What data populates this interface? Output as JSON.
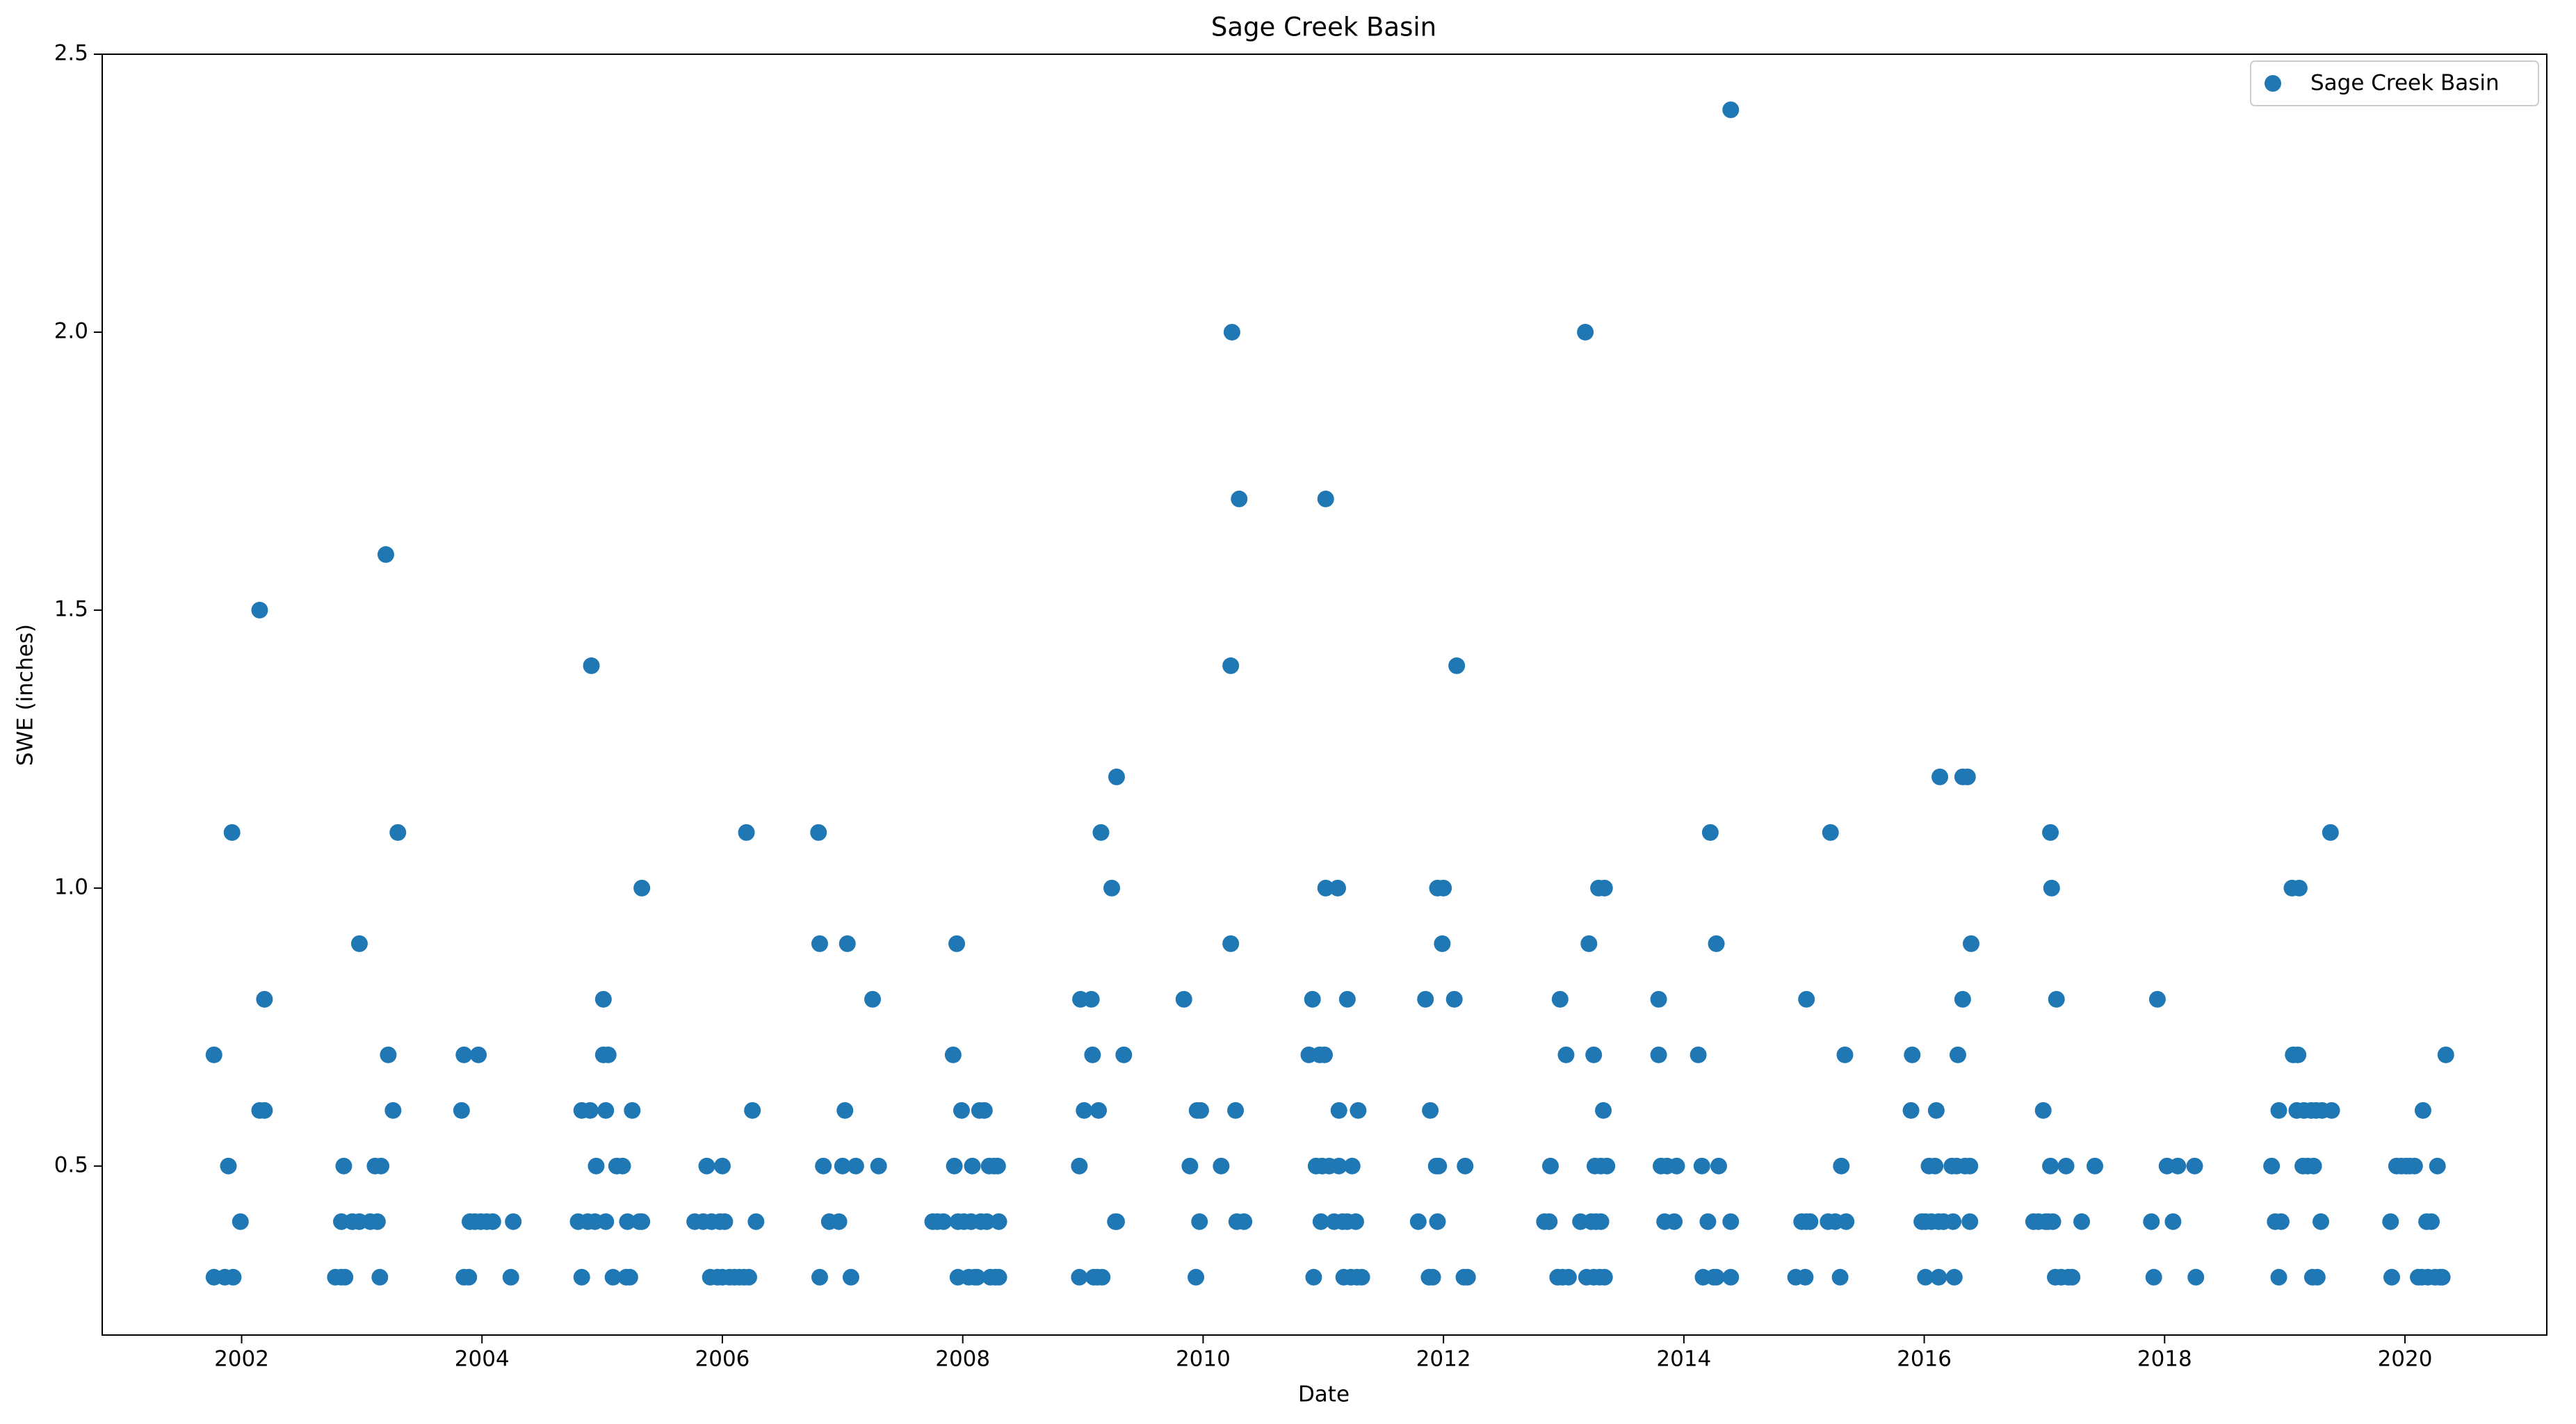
{
  "chart_data": {
    "type": "scatter",
    "title": "Sage Creek Basin",
    "x_label": "Date",
    "y_label": "SWE (inches)",
    "xlim": [
      2000.84,
      2021.18
    ],
    "ylim": [
      0.196,
      2.5
    ],
    "xticks": [
      2002,
      2004,
      2006,
      2008,
      2010,
      2012,
      2014,
      2016,
      2018,
      2020
    ],
    "yticks": [
      0.5,
      {
        "value": 1.0,
        "label": "1.0"
      },
      1.5,
      {
        "value": 2.0,
        "label": "2.0"
      },
      2.5
    ],
    "legend": "upper right",
    "x": [
      2001.77,
      2001.77,
      2001.86,
      2001.89,
      2001.92,
      2001.93,
      2001.99,
      2002.15,
      2002.15,
      2002.19,
      2002.19,
      2002.78,
      2002.83,
      2002.83,
      2002.85,
      2002.86,
      2002.92,
      2002.98,
      2002.98,
      2003.07,
      2003.11,
      2003.13,
      2003.15,
      2003.16,
      2003.2,
      2003.22,
      2003.26,
      2003.3,
      2003.83,
      2003.85,
      2003.85,
      2003.89,
      2003.9,
      2003.94,
      2003.97,
      2003.99,
      2004.04,
      2004.09,
      2004.24,
      2004.26,
      2004.8,
      2004.83,
      2004.83,
      2004.88,
      2004.9,
      2004.91,
      2004.94,
      2004.95,
      2005.01,
      2005.01,
      2005.03,
      2005.03,
      2005.05,
      2005.09,
      2005.12,
      2005.17,
      2005.2,
      2005.21,
      2005.23,
      2005.25,
      2005.31,
      2005.33,
      2005.33,
      2005.77,
      2005.84,
      2005.87,
      2005.9,
      2005.91,
      2005.96,
      2005.98,
      2006.0,
      2006.0,
      2006.02,
      2006.06,
      2006.1,
      2006.14,
      2006.18,
      2006.2,
      2006.22,
      2006.25,
      2006.28,
      2006.8,
      2006.81,
      2006.81,
      2006.84,
      2006.89,
      2006.97,
      2007.0,
      2007.02,
      2007.04,
      2007.07,
      2007.11,
      2007.25,
      2007.3,
      2007.75,
      2007.79,
      2007.84,
      2007.92,
      2007.95,
      2007.93,
      2007.96,
      2007.96,
      2007.99,
      2008.01,
      2008.05,
      2008.07,
      2008.08,
      2008.1,
      2008.12,
      2008.14,
      2008.15,
      2008.18,
      2008.2,
      2008.22,
      2008.23,
      2008.26,
      2008.27,
      2008.29,
      2008.3,
      2008.3,
      2008.97,
      2008.97,
      2008.98,
      2009.01,
      2009.07,
      2009.09,
      2009.08,
      2009.12,
      2009.13,
      2009.15,
      2009.16,
      2009.24,
      2009.27,
      2009.28,
      2009.28,
      2009.34,
      2009.84,
      2009.89,
      2009.94,
      2009.95,
      2009.97,
      2009.98,
      2010.15,
      2010.23,
      2010.24,
      2010.23,
      2010.27,
      2010.28,
      2010.3,
      2010.34,
      2010.88,
      2010.91,
      2010.92,
      2010.94,
      2010.97,
      2010.98,
      2010.99,
      2011.01,
      2011.02,
      2011.02,
      2011.05,
      2011.09,
      2011.12,
      2011.13,
      2011.13,
      2011.16,
      2011.17,
      2011.2,
      2011.2,
      2011.23,
      2011.24,
      2011.27,
      2011.28,
      2011.29,
      2011.32,
      2011.79,
      2011.85,
      2011.88,
      2011.89,
      2011.91,
      2011.94,
      2011.95,
      2011.95,
      2011.96,
      2011.99,
      2012.0,
      2012.09,
      2012.11,
      2012.17,
      2012.18,
      2012.2,
      2012.84,
      2012.88,
      2012.89,
      2012.95,
      2012.97,
      2012.99,
      2013.02,
      2013.04,
      2013.14,
      2013.18,
      2013.21,
      2013.19,
      2013.23,
      2013.25,
      2013.26,
      2013.25,
      2013.27,
      2013.29,
      2013.3,
      2013.31,
      2013.31,
      2013.33,
      2013.34,
      2013.34,
      2013.36,
      2013.79,
      2013.79,
      2013.81,
      2013.84,
      2013.86,
      2013.92,
      2013.94,
      2014.12,
      2014.15,
      2014.16,
      2014.2,
      2014.22,
      2014.25,
      2014.27,
      2014.29,
      2014.27,
      2014.39,
      2014.39,
      2014.39,
      2014.93,
      2014.98,
      2015.01,
      2015.02,
      2015.02,
      2015.05,
      2015.2,
      2015.22,
      2015.26,
      2015.3,
      2015.31,
      2015.34,
      2015.35,
      2015.89,
      2015.9,
      2015.98,
      2016.01,
      2016.01,
      2016.04,
      2016.06,
      2016.09,
      2016.1,
      2016.12,
      2016.13,
      2016.12,
      2016.16,
      2016.23,
      2016.24,
      2016.25,
      2016.27,
      2016.28,
      2016.32,
      2016.32,
      2016.34,
      2016.36,
      2016.38,
      2016.38,
      2016.39,
      2016.91,
      2016.95,
      2016.99,
      2017.01,
      2017.03,
      2017.05,
      2017.05,
      2017.06,
      2017.07,
      2017.09,
      2017.1,
      2017.14,
      2017.18,
      2017.2,
      2017.23,
      2017.31,
      2017.42,
      2017.89,
      2017.91,
      2017.94,
      2018.02,
      2018.07,
      2018.11,
      2018.25,
      2018.26,
      2018.89,
      2018.92,
      2018.95,
      2018.95,
      2018.97,
      2019.06,
      2019.07,
      2019.1,
      2019.11,
      2019.12,
      2019.15,
      2019.16,
      2019.19,
      2019.22,
      2019.23,
      2019.24,
      2019.26,
      2019.27,
      2019.3,
      2019.31,
      2019.38,
      2019.39,
      2019.88,
      2019.89,
      2019.93,
      2019.97,
      2020.01,
      2020.04,
      2020.08,
      2020.11,
      2020.14,
      2020.15,
      2020.18,
      2020.19,
      2020.22,
      2020.25,
      2020.27,
      2020.29,
      2020.31,
      2020.34
    ],
    "series": [
      {
        "name": "Sage Creek Basin",
        "color": "#1f77b4",
        "values": [
          0.7,
          0.3,
          0.3,
          0.5,
          1.1,
          0.3,
          0.4,
          1.5,
          0.6,
          0.8,
          0.6,
          0.3,
          0.3,
          0.4,
          0.5,
          0.3,
          0.4,
          0.4,
          0.9,
          0.4,
          0.5,
          0.4,
          0.3,
          0.5,
          1.6,
          0.7,
          0.6,
          1.1,
          0.6,
          0.7,
          0.3,
          0.3,
          0.4,
          0.4,
          0.7,
          0.4,
          0.4,
          0.4,
          0.3,
          0.4,
          0.4,
          0.6,
          0.3,
          0.4,
          0.6,
          1.4,
          0.4,
          0.5,
          0.8,
          0.7,
          0.6,
          0.4,
          0.7,
          0.3,
          0.5,
          0.5,
          0.3,
          0.4,
          0.3,
          0.6,
          0.4,
          1.0,
          0.4,
          0.4,
          0.4,
          0.5,
          0.3,
          0.4,
          0.3,
          0.4,
          0.5,
          0.3,
          0.4,
          0.3,
          0.3,
          0.3,
          0.3,
          1.1,
          0.3,
          0.6,
          0.4,
          1.1,
          0.9,
          0.3,
          0.5,
          0.4,
          0.4,
          0.5,
          0.6,
          0.9,
          0.3,
          0.5,
          0.8,
          0.5,
          0.4,
          0.4,
          0.4,
          0.7,
          0.9,
          0.5,
          0.4,
          0.3,
          0.6,
          0.4,
          0.3,
          0.4,
          0.5,
          0.3,
          0.3,
          0.6,
          0.4,
          0.6,
          0.4,
          0.5,
          0.3,
          0.5,
          0.3,
          0.5,
          0.4,
          0.3,
          0.3,
          0.5,
          0.8,
          0.6,
          0.8,
          0.3,
          0.7,
          0.3,
          0.6,
          1.1,
          0.3,
          1.0,
          0.4,
          1.2,
          0.4,
          0.7,
          0.8,
          0.5,
          0.3,
          0.6,
          0.4,
          0.6,
          0.5,
          0.9,
          2.0,
          1.4,
          0.6,
          0.4,
          1.7,
          0.4,
          0.7,
          0.8,
          0.3,
          0.5,
          0.7,
          0.4,
          0.5,
          0.7,
          1.7,
          1.0,
          0.5,
          0.4,
          1.0,
          0.6,
          0.5,
          0.4,
          0.3,
          0.8,
          0.4,
          0.3,
          0.5,
          0.4,
          0.3,
          0.6,
          0.3,
          0.4,
          0.8,
          0.3,
          0.6,
          0.3,
          0.5,
          0.4,
          1.0,
          0.5,
          0.9,
          1.0,
          0.8,
          1.4,
          0.3,
          0.5,
          0.3,
          0.4,
          0.4,
          0.5,
          0.3,
          0.8,
          0.3,
          0.7,
          0.3,
          0.4,
          2.0,
          0.9,
          0.3,
          0.4,
          0.7,
          0.5,
          0.3,
          0.4,
          1.0,
          0.3,
          0.5,
          0.4,
          0.6,
          0.3,
          1.0,
          0.5,
          0.8,
          0.7,
          0.5,
          0.4,
          0.5,
          0.4,
          0.5,
          0.7,
          0.5,
          0.3,
          0.4,
          1.1,
          0.3,
          0.9,
          0.5,
          0.3,
          2.4,
          0.4,
          0.3,
          0.3,
          0.4,
          0.3,
          0.4,
          0.8,
          0.4,
          0.4,
          1.1,
          0.4,
          0.3,
          0.5,
          0.7,
          0.4,
          0.6,
          0.7,
          0.4,
          0.3,
          0.4,
          0.5,
          0.4,
          0.5,
          0.6,
          0.3,
          1.2,
          0.4,
          0.4,
          0.5,
          0.4,
          0.3,
          0.5,
          0.7,
          1.2,
          0.8,
          0.5,
          1.2,
          0.4,
          0.5,
          0.9,
          0.4,
          0.4,
          0.6,
          0.4,
          0.4,
          1.1,
          0.5,
          1.0,
          0.4,
          0.3,
          0.8,
          0.3,
          0.5,
          0.3,
          0.3,
          0.4,
          0.5,
          0.4,
          0.3,
          0.8,
          0.5,
          0.4,
          0.5,
          0.5,
          0.3,
          0.5,
          0.4,
          0.6,
          0.3,
          0.4,
          1.0,
          0.7,
          0.6,
          0.7,
          1.0,
          0.5,
          0.6,
          0.5,
          0.6,
          0.3,
          0.5,
          0.6,
          0.3,
          0.4,
          0.6,
          1.1,
          0.6,
          0.4,
          0.3,
          0.5,
          0.5,
          0.5,
          0.5,
          0.5,
          0.3,
          0.3,
          0.6,
          0.4,
          0.3,
          0.4,
          0.3,
          0.5,
          0.3,
          0.3,
          0.7
        ]
      }
    ]
  }
}
